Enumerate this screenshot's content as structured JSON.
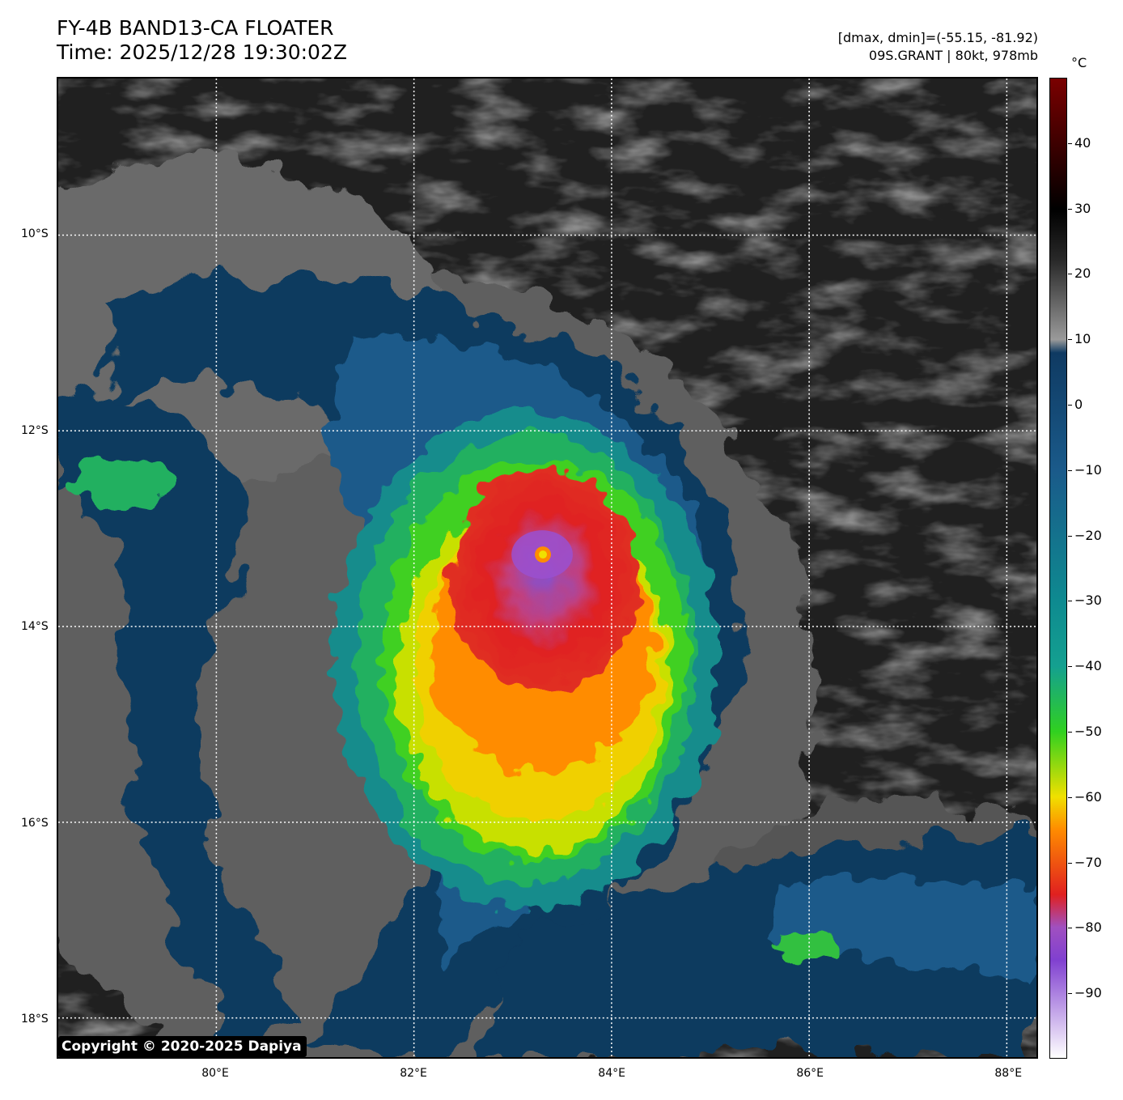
{
  "header": {
    "title_line1": "FY-4B BAND13-CA FLOATER",
    "title_line2": "Time: 2025/12/28 19:30:02Z",
    "info_line1": "[dmax, dmin]=(-55.15, -81.92)",
    "info_line2": "09S.GRANT | 80kt, 978mb"
  },
  "map": {
    "lon_range": [
      78.4,
      88.3
    ],
    "lat_range": [
      -18.4,
      -8.4
    ],
    "grid": "dotted white",
    "storm_center": {
      "lon": 83.1,
      "lat": -13.3
    },
    "lat_ticks": [
      {
        "value": -10,
        "label": "10°S"
      },
      {
        "value": -12,
        "label": "12°S"
      },
      {
        "value": -14,
        "label": "14°S"
      },
      {
        "value": -16,
        "label": "16°S"
      },
      {
        "value": -18,
        "label": "18°S"
      }
    ],
    "lon_ticks": [
      {
        "value": 80,
        "label": "80°E"
      },
      {
        "value": 82,
        "label": "82°E"
      },
      {
        "value": 84,
        "label": "84°E"
      },
      {
        "value": 86,
        "label": "86°E"
      },
      {
        "value": 88,
        "label": "88°E"
      }
    ]
  },
  "colorbar": {
    "unit": "°C",
    "range": [
      -100,
      50
    ],
    "ticks": [
      {
        "value": 40,
        "label": "40"
      },
      {
        "value": 30,
        "label": "30"
      },
      {
        "value": 20,
        "label": "20"
      },
      {
        "value": 10,
        "label": "10"
      },
      {
        "value": 0,
        "label": "0"
      },
      {
        "value": -10,
        "label": "−10"
      },
      {
        "value": -20,
        "label": "−20"
      },
      {
        "value": -30,
        "label": "−30"
      },
      {
        "value": -40,
        "label": "−40"
      },
      {
        "value": -50,
        "label": "−50"
      },
      {
        "value": -60,
        "label": "−60"
      },
      {
        "value": -70,
        "label": "−70"
      },
      {
        "value": -80,
        "label": "−80"
      },
      {
        "value": -90,
        "label": "−90"
      }
    ],
    "colors": {
      "top": "#7a0000",
      "warm_black": "#000000",
      "gray": "#9a9a9a",
      "navy": "#0f3a62",
      "blue": "#1a5a8a",
      "teal": "#14a090",
      "green": "#30d020",
      "yellow": "#f0e000",
      "orange": "#ff8c00",
      "red": "#e02020",
      "purple": "#8040d0",
      "white": "#ffffff"
    }
  },
  "copyright": "Copyright © 2020-2025 Dapiya"
}
